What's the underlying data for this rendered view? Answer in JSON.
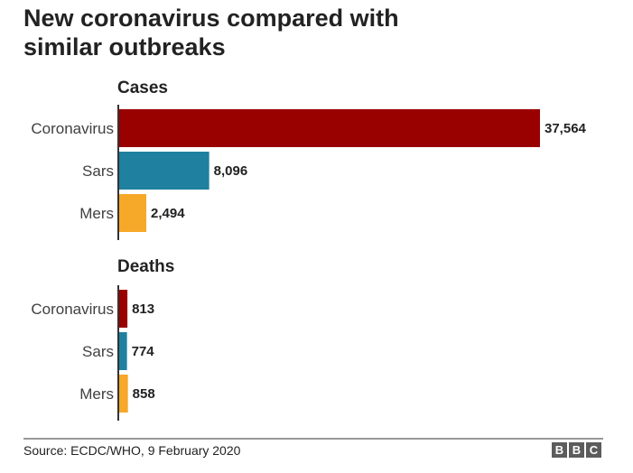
{
  "title_lines": [
    "New coronavirus compared with",
    "similar outbreaks"
  ],
  "source": "Source: ECDC/WHO,  9 February 2020",
  "logo": {
    "letters": [
      "B",
      "B",
      "C"
    ],
    "color": "#5c5c5c"
  },
  "colors": {
    "Coronavirus": "#990000",
    "Sars": "#1f80a0",
    "Mers": "#f6a829",
    "axis": "#333333",
    "rule": "#333333"
  },
  "chart_data": [
    {
      "type": "bar",
      "orientation": "horizontal",
      "title": "Cases",
      "categories": [
        "Coronavirus",
        "Sars",
        "Mers"
      ],
      "values": [
        37564,
        8096,
        2494
      ],
      "value_labels": [
        "37,564",
        "8,096",
        "2,494"
      ]
    },
    {
      "type": "bar",
      "orientation": "horizontal",
      "title": "Deaths",
      "categories": [
        "Coronavirus",
        "Sars",
        "Mers"
      ],
      "values": [
        813,
        774,
        858
      ],
      "value_labels": [
        "813",
        "774",
        "858"
      ],
      "scale": "same as Cases"
    }
  ]
}
